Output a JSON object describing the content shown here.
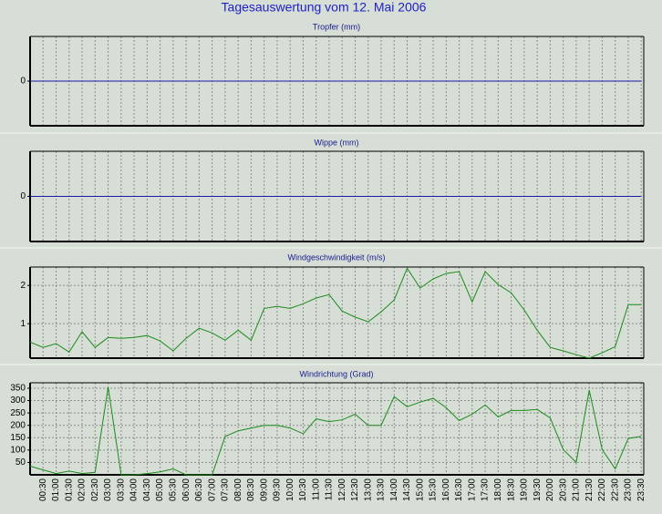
{
  "title": "Tagesauswertung vom 12. Mai 2006",
  "chart_data": [
    {
      "type": "line",
      "title": "Tropfer (mm)",
      "ylim": [
        -1,
        1
      ],
      "yticks": [
        0
      ],
      "grid": true,
      "series": [
        {
          "color": "#1a1aa6",
          "values": [
            0,
            0,
            0,
            0,
            0,
            0,
            0,
            0,
            0,
            0,
            0,
            0,
            0,
            0,
            0,
            0,
            0,
            0,
            0,
            0,
            0,
            0,
            0,
            0,
            0,
            0,
            0,
            0,
            0,
            0,
            0,
            0,
            0,
            0,
            0,
            0,
            0,
            0,
            0,
            0,
            0,
            0,
            0,
            0,
            0,
            0,
            0,
            0
          ]
        }
      ]
    },
    {
      "type": "line",
      "title": "Wippe (mm)",
      "ylim": [
        -1,
        1
      ],
      "yticks": [
        0
      ],
      "grid": true,
      "series": [
        {
          "color": "#1a1aa6",
          "values": [
            0,
            0,
            0,
            0,
            0,
            0,
            0,
            0,
            0,
            0,
            0,
            0,
            0,
            0,
            0,
            0,
            0,
            0,
            0,
            0,
            0,
            0,
            0,
            0,
            0,
            0,
            0,
            0,
            0,
            0,
            0,
            0,
            0,
            0,
            0,
            0,
            0,
            0,
            0,
            0,
            0,
            0,
            0,
            0,
            0,
            0,
            0,
            0
          ]
        }
      ]
    },
    {
      "type": "line",
      "title": "Windgeschwindigkeit (m/s)",
      "ylim": [
        0.1,
        2.48
      ],
      "yticks": [
        1,
        2
      ],
      "grid": true,
      "series": [
        {
          "color": "#1e8a1e",
          "values": [
            0.52,
            0.38,
            0.48,
            0.26,
            0.79,
            0.38,
            0.64,
            0.62,
            0.64,
            0.69,
            0.55,
            0.29,
            0.62,
            0.88,
            0.76,
            0.57,
            0.83,
            0.57,
            1.4,
            1.45,
            1.4,
            1.52,
            1.67,
            1.76,
            1.33,
            1.17,
            1.05,
            1.31,
            1.62,
            2.45,
            1.93,
            2.17,
            2.31,
            2.36,
            1.57,
            2.36,
            2.02,
            1.81,
            1.36,
            0.83,
            0.38,
            0.29,
            0.19,
            0.1,
            0.24,
            0.4,
            1.5,
            1.5
          ]
        }
      ]
    },
    {
      "type": "line",
      "title": "Windrichtung (Grad)",
      "ylim": [
        0,
        372
      ],
      "yticks": [
        50,
        100,
        150,
        200,
        250,
        300,
        350
      ],
      "grid": true,
      "categories": [
        null,
        "00:30",
        "01:00",
        "01:30",
        "02:00",
        "02:30",
        "03:00",
        "03:30",
        "04:00",
        "04:30",
        "05:00",
        "05:30",
        "06:00",
        "06:30",
        "07:00",
        "07:30",
        "08:00",
        "08:30",
        "09:00",
        "09:30",
        "10:00",
        "10:30",
        "11:00",
        "11:30",
        "12:00",
        "12:30",
        "13:00",
        "13:30",
        "14:00",
        "14:30",
        "15:00",
        "15:30",
        "16:00",
        "16:30",
        "17:00",
        "17:30",
        "18:00",
        "18:30",
        "19:00",
        "19:30",
        "20:00",
        "20:30",
        "21:00",
        "21:30",
        "22:00",
        "22:30",
        "23:00",
        "23:30"
      ],
      "series": [
        {
          "color": "#1e8a1e",
          "values": [
            35,
            20,
            5,
            15,
            5,
            10,
            355,
            0,
            0,
            5,
            12,
            24,
            0,
            0,
            0,
            155,
            178,
            189,
            200,
            200,
            189,
            166,
            226,
            215,
            222,
            245,
            200,
            200,
            316,
            275,
            294,
            309,
            271,
            219,
            245,
            282,
            234,
            260,
            260,
            264,
            230,
            102,
            50,
            342,
            102,
            24,
            147,
            155
          ]
        }
      ]
    }
  ]
}
